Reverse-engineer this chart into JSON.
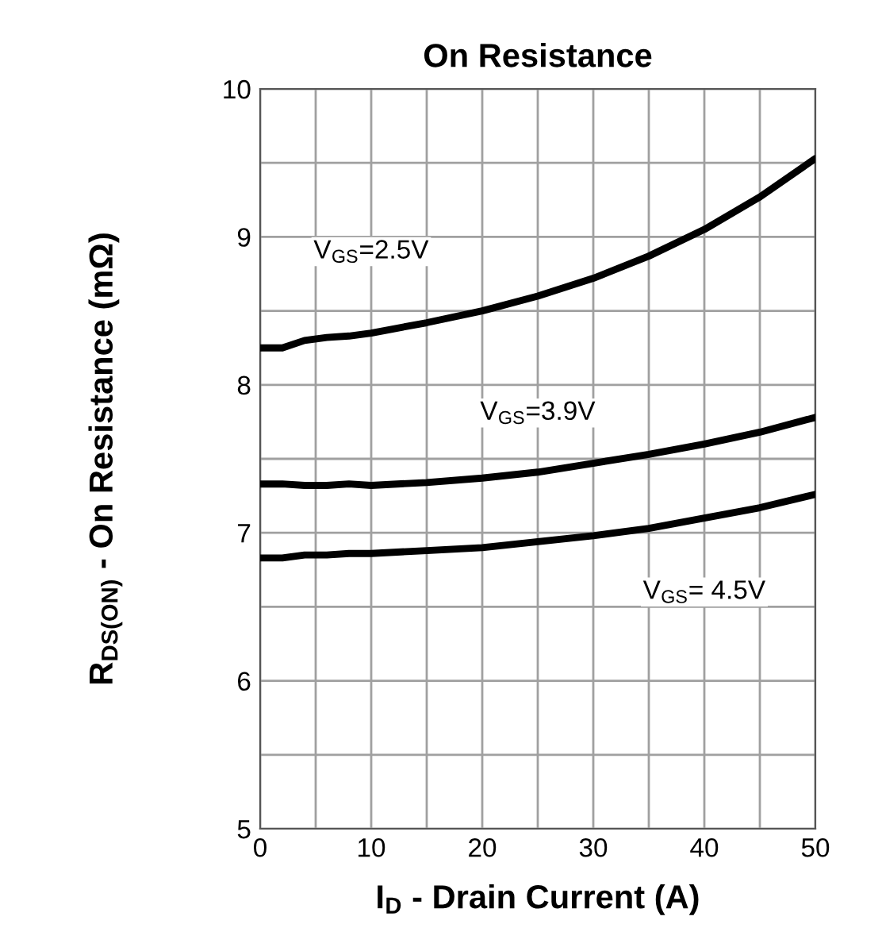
{
  "chart_data": {
    "type": "line",
    "title": "On Resistance",
    "xlabel": "I$_{D}$ - Drain Current (A)",
    "ylabel": "R$_{DS(ON)}$ - On Resistance (mΩ)",
    "x": [
      0,
      2,
      4,
      6,
      8,
      10,
      15,
      20,
      25,
      30,
      35,
      40,
      45,
      50
    ],
    "series": [
      {
        "name": "V$_{GS}$=2.5V",
        "color": "#000000",
        "values": [
          8.25,
          8.25,
          8.3,
          8.32,
          8.33,
          8.35,
          8.42,
          8.5,
          8.6,
          8.72,
          8.87,
          9.05,
          9.27,
          9.53
        ]
      },
      {
        "name": "V$_{GS}$=3.9V",
        "color": "#000000",
        "values": [
          7.33,
          7.33,
          7.32,
          7.32,
          7.33,
          7.32,
          7.34,
          7.37,
          7.41,
          7.47,
          7.53,
          7.6,
          7.68,
          7.78
        ]
      },
      {
        "name": "V$_{GS}$= 4.5V",
        "color": "#000000",
        "values": [
          6.83,
          6.83,
          6.85,
          6.85,
          6.86,
          6.86,
          6.88,
          6.9,
          6.94,
          6.98,
          7.03,
          7.1,
          7.17,
          7.26
        ]
      }
    ],
    "xlim": [
      0,
      50
    ],
    "ylim": [
      5,
      10
    ],
    "xticks": [
      0,
      10,
      20,
      30,
      40,
      50
    ],
    "yticks": [
      5,
      6,
      7,
      8,
      9,
      10
    ],
    "grid": true,
    "legend": false,
    "marker": "none",
    "line_style": "solid"
  }
}
